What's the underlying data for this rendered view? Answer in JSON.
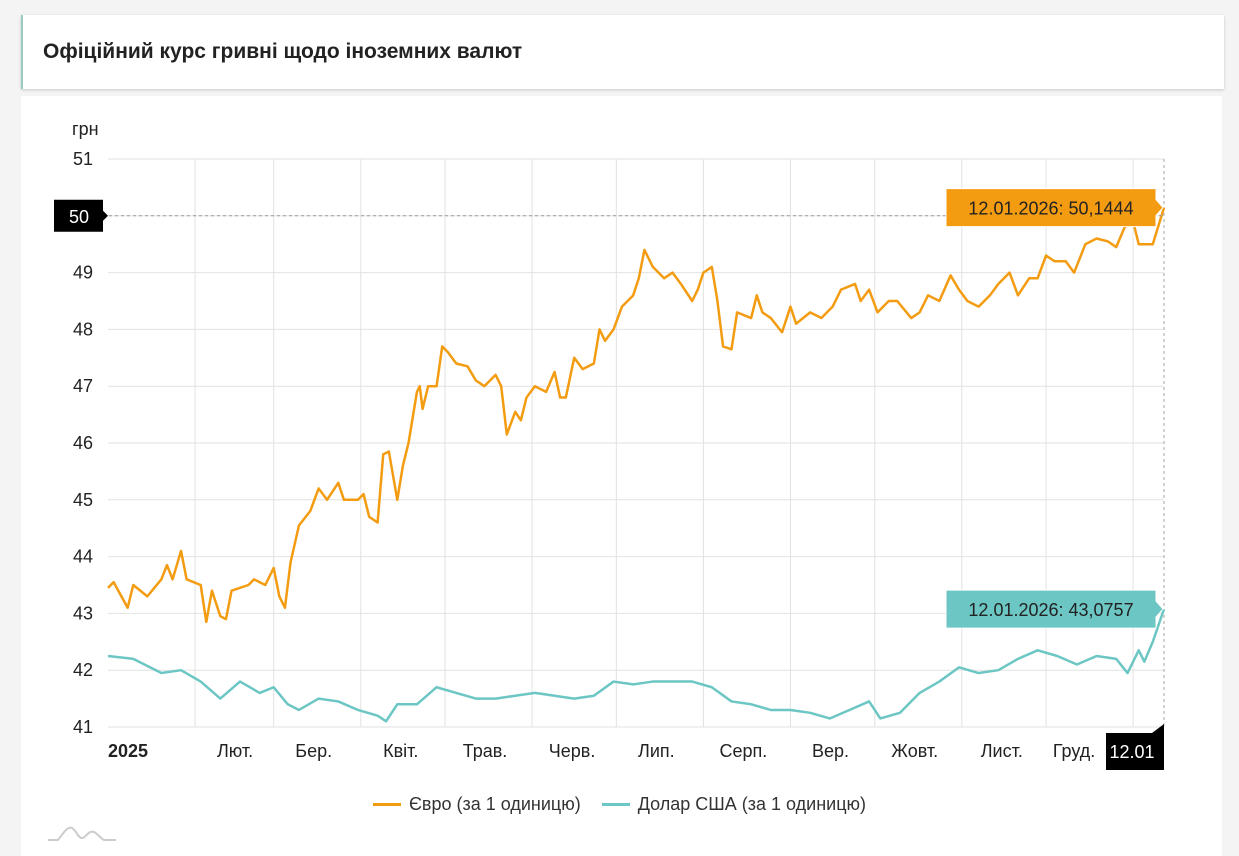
{
  "header": {
    "title": "Офіційний курс гривні щодо іноземних валют"
  },
  "chart_data": {
    "type": "line",
    "ylabel": "грн",
    "ylim": [
      41,
      51
    ],
    "yticks": [
      41,
      42,
      43,
      44,
      45,
      46,
      47,
      48,
      49,
      50,
      51
    ],
    "xlim": [
      "2025-01-01",
      "2026-01-12"
    ],
    "xticks": [
      {
        "date": "2025-01-01",
        "label": "2025",
        "bold": true
      },
      {
        "date": "2025-02-01",
        "label": "Лют."
      },
      {
        "date": "2025-03-01",
        "label": "Бер."
      },
      {
        "date": "2025-04-01",
        "label": "Квіт."
      },
      {
        "date": "2025-05-01",
        "label": "Трав."
      },
      {
        "date": "2025-06-01",
        "label": "Черв."
      },
      {
        "date": "2025-07-01",
        "label": "Лип."
      },
      {
        "date": "2025-08-01",
        "label": "Серп."
      },
      {
        "date": "2025-09-01",
        "label": "Вер."
      },
      {
        "date": "2025-10-01",
        "label": "Жовт."
      },
      {
        "date": "2025-11-01",
        "label": "Лист."
      },
      {
        "date": "2025-12-01",
        "label": "Груд."
      },
      {
        "date": "2026-01-01",
        "label": ""
      }
    ],
    "grid": true,
    "legend_position": "bottom",
    "crosshair": {
      "y_label": "50",
      "x_label": "12.01"
    },
    "series": [
      {
        "name": "Євро (за 1 одиницю)",
        "color": "#f39c12",
        "tooltip": "12.01.2026: 50,1444",
        "points": [
          [
            "2025-01-01",
            43.45
          ],
          [
            "2025-01-03",
            43.55
          ],
          [
            "2025-01-08",
            43.1
          ],
          [
            "2025-01-10",
            43.5
          ],
          [
            "2025-01-15",
            43.3
          ],
          [
            "2025-01-20",
            43.6
          ],
          [
            "2025-01-22",
            43.85
          ],
          [
            "2025-01-24",
            43.6
          ],
          [
            "2025-01-27",
            44.1
          ],
          [
            "2025-01-29",
            43.6
          ],
          [
            "2025-02-03",
            43.5
          ],
          [
            "2025-02-05",
            42.85
          ],
          [
            "2025-02-07",
            43.4
          ],
          [
            "2025-02-10",
            42.95
          ],
          [
            "2025-02-12",
            42.9
          ],
          [
            "2025-02-14",
            43.4
          ],
          [
            "2025-02-20",
            43.5
          ],
          [
            "2025-02-22",
            43.6
          ],
          [
            "2025-02-26",
            43.5
          ],
          [
            "2025-03-01",
            43.8
          ],
          [
            "2025-03-03",
            43.3
          ],
          [
            "2025-03-05",
            43.1
          ],
          [
            "2025-03-07",
            43.9
          ],
          [
            "2025-03-10",
            44.55
          ],
          [
            "2025-03-14",
            44.8
          ],
          [
            "2025-03-17",
            45.2
          ],
          [
            "2025-03-20",
            45.0
          ],
          [
            "2025-03-24",
            45.3
          ],
          [
            "2025-03-26",
            45.0
          ],
          [
            "2025-03-31",
            45.0
          ],
          [
            "2025-04-02",
            45.1
          ],
          [
            "2025-04-04",
            44.7
          ],
          [
            "2025-04-07",
            44.6
          ],
          [
            "2025-04-09",
            45.8
          ],
          [
            "2025-04-11",
            45.85
          ],
          [
            "2025-04-14",
            45.0
          ],
          [
            "2025-04-16",
            45.6
          ],
          [
            "2025-04-18",
            46.0
          ],
          [
            "2025-04-21",
            46.9
          ],
          [
            "2025-04-22",
            47.0
          ],
          [
            "2025-04-23",
            46.6
          ],
          [
            "2025-04-25",
            47.0
          ],
          [
            "2025-04-28",
            47.0
          ],
          [
            "2025-04-30",
            47.7
          ],
          [
            "2025-05-02",
            47.6
          ],
          [
            "2025-05-05",
            47.4
          ],
          [
            "2025-05-09",
            47.35
          ],
          [
            "2025-05-12",
            47.1
          ],
          [
            "2025-05-15",
            47.0
          ],
          [
            "2025-05-19",
            47.2
          ],
          [
            "2025-05-21",
            47.0
          ],
          [
            "2025-05-23",
            46.15
          ],
          [
            "2025-05-26",
            46.55
          ],
          [
            "2025-05-28",
            46.4
          ],
          [
            "2025-05-30",
            46.8
          ],
          [
            "2025-06-02",
            47.0
          ],
          [
            "2025-06-06",
            46.9
          ],
          [
            "2025-06-09",
            47.25
          ],
          [
            "2025-06-11",
            46.8
          ],
          [
            "2025-06-13",
            46.8
          ],
          [
            "2025-06-16",
            47.5
          ],
          [
            "2025-06-19",
            47.3
          ],
          [
            "2025-06-23",
            47.4
          ],
          [
            "2025-06-25",
            48.0
          ],
          [
            "2025-06-27",
            47.8
          ],
          [
            "2025-06-30",
            48.0
          ],
          [
            "2025-07-03",
            48.4
          ],
          [
            "2025-07-07",
            48.6
          ],
          [
            "2025-07-09",
            48.9
          ],
          [
            "2025-07-11",
            49.4
          ],
          [
            "2025-07-14",
            49.1
          ],
          [
            "2025-07-18",
            48.9
          ],
          [
            "2025-07-21",
            49.0
          ],
          [
            "2025-07-24",
            48.8
          ],
          [
            "2025-07-28",
            48.5
          ],
          [
            "2025-07-30",
            48.7
          ],
          [
            "2025-08-01",
            49.0
          ],
          [
            "2025-08-04",
            49.1
          ],
          [
            "2025-08-06",
            48.5
          ],
          [
            "2025-08-08",
            47.7
          ],
          [
            "2025-08-11",
            47.65
          ],
          [
            "2025-08-13",
            48.3
          ],
          [
            "2025-08-18",
            48.2
          ],
          [
            "2025-08-20",
            48.6
          ],
          [
            "2025-08-22",
            48.3
          ],
          [
            "2025-08-25",
            48.2
          ],
          [
            "2025-08-29",
            47.95
          ],
          [
            "2025-09-01",
            48.4
          ],
          [
            "2025-09-03",
            48.1
          ],
          [
            "2025-09-08",
            48.3
          ],
          [
            "2025-09-12",
            48.2
          ],
          [
            "2025-09-16",
            48.4
          ],
          [
            "2025-09-19",
            48.7
          ],
          [
            "2025-09-24",
            48.8
          ],
          [
            "2025-09-26",
            48.5
          ],
          [
            "2025-09-29",
            48.7
          ],
          [
            "2025-10-02",
            48.3
          ],
          [
            "2025-10-06",
            48.5
          ],
          [
            "2025-10-09",
            48.5
          ],
          [
            "2025-10-14",
            48.2
          ],
          [
            "2025-10-17",
            48.3
          ],
          [
            "2025-10-20",
            48.6
          ],
          [
            "2025-10-24",
            48.5
          ],
          [
            "2025-10-28",
            48.95
          ],
          [
            "2025-10-31",
            48.7
          ],
          [
            "2025-11-03",
            48.5
          ],
          [
            "2025-11-07",
            48.4
          ],
          [
            "2025-11-11",
            48.6
          ],
          [
            "2025-11-14",
            48.8
          ],
          [
            "2025-11-18",
            49.0
          ],
          [
            "2025-11-21",
            48.6
          ],
          [
            "2025-11-25",
            48.9
          ],
          [
            "2025-11-28",
            48.9
          ],
          [
            "2025-12-01",
            49.3
          ],
          [
            "2025-12-04",
            49.2
          ],
          [
            "2025-12-08",
            49.2
          ],
          [
            "2025-12-11",
            49.0
          ],
          [
            "2025-12-15",
            49.5
          ],
          [
            "2025-12-19",
            49.6
          ],
          [
            "2025-12-23",
            49.55
          ],
          [
            "2025-12-26",
            49.45
          ],
          [
            "2025-12-29",
            49.8
          ],
          [
            "2026-01-01",
            49.9
          ],
          [
            "2026-01-03",
            49.5
          ],
          [
            "2026-01-08",
            49.5
          ],
          [
            "2026-01-12",
            50.1444
          ]
        ]
      },
      {
        "name": "Долар США (за 1 одиницю)",
        "color": "#6cc6c4",
        "tooltip": "12.01.2026: 43,0757",
        "points": [
          [
            "2025-01-01",
            42.25
          ],
          [
            "2025-01-10",
            42.2
          ],
          [
            "2025-01-20",
            41.95
          ],
          [
            "2025-01-27",
            42.0
          ],
          [
            "2025-02-03",
            41.8
          ],
          [
            "2025-02-10",
            41.5
          ],
          [
            "2025-02-17",
            41.8
          ],
          [
            "2025-02-24",
            41.6
          ],
          [
            "2025-03-01",
            41.7
          ],
          [
            "2025-03-06",
            41.4
          ],
          [
            "2025-03-10",
            41.3
          ],
          [
            "2025-03-17",
            41.5
          ],
          [
            "2025-03-24",
            41.45
          ],
          [
            "2025-03-31",
            41.3
          ],
          [
            "2025-04-07",
            41.2
          ],
          [
            "2025-04-10",
            41.1
          ],
          [
            "2025-04-14",
            41.4
          ],
          [
            "2025-04-21",
            41.4
          ],
          [
            "2025-04-28",
            41.7
          ],
          [
            "2025-05-05",
            41.6
          ],
          [
            "2025-05-12",
            41.5
          ],
          [
            "2025-05-19",
            41.5
          ],
          [
            "2025-05-26",
            41.55
          ],
          [
            "2025-06-02",
            41.6
          ],
          [
            "2025-06-09",
            41.55
          ],
          [
            "2025-06-16",
            41.5
          ],
          [
            "2025-06-23",
            41.55
          ],
          [
            "2025-06-30",
            41.8
          ],
          [
            "2025-07-07",
            41.75
          ],
          [
            "2025-07-14",
            41.8
          ],
          [
            "2025-07-21",
            41.8
          ],
          [
            "2025-07-28",
            41.8
          ],
          [
            "2025-08-04",
            41.7
          ],
          [
            "2025-08-11",
            41.45
          ],
          [
            "2025-08-18",
            41.4
          ],
          [
            "2025-08-25",
            41.3
          ],
          [
            "2025-09-01",
            41.3
          ],
          [
            "2025-09-08",
            41.25
          ],
          [
            "2025-09-15",
            41.15
          ],
          [
            "2025-09-22",
            41.3
          ],
          [
            "2025-09-29",
            41.45
          ],
          [
            "2025-10-03",
            41.15
          ],
          [
            "2025-10-10",
            41.25
          ],
          [
            "2025-10-17",
            41.6
          ],
          [
            "2025-10-24",
            41.8
          ],
          [
            "2025-10-31",
            42.05
          ],
          [
            "2025-11-07",
            41.95
          ],
          [
            "2025-11-14",
            42.0
          ],
          [
            "2025-11-21",
            42.2
          ],
          [
            "2025-11-28",
            42.35
          ],
          [
            "2025-12-05",
            42.25
          ],
          [
            "2025-12-12",
            42.1
          ],
          [
            "2025-12-19",
            42.25
          ],
          [
            "2025-12-26",
            42.2
          ],
          [
            "2025-12-30",
            41.95
          ],
          [
            "2026-01-03",
            42.35
          ],
          [
            "2026-01-05",
            42.15
          ],
          [
            "2026-01-08",
            42.5
          ],
          [
            "2026-01-12",
            43.0757
          ]
        ]
      }
    ]
  }
}
